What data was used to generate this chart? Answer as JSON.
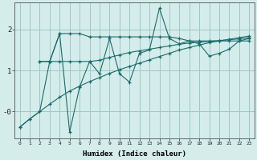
{
  "xlabel": "Humidex (Indice chaleur)",
  "background_color": "#d4ecea",
  "grid_color": "#9dc8c8",
  "line_color": "#1a6b6b",
  "xlim": [
    -0.5,
    23.5
  ],
  "ylim": [
    -0.65,
    2.65
  ],
  "yticks": [
    0.0,
    1.0,
    2.0
  ],
  "ytick_labels": [
    "-0",
    "1",
    "2"
  ],
  "xticks": [
    0,
    1,
    2,
    3,
    4,
    5,
    6,
    7,
    8,
    9,
    10,
    11,
    12,
    13,
    14,
    15,
    16,
    17,
    18,
    19,
    20,
    21,
    22,
    23
  ],
  "line1_x": [
    0,
    1,
    2,
    3,
    4,
    5,
    6,
    7,
    8,
    9,
    10,
    11,
    12,
    13,
    14,
    15,
    16,
    17,
    18,
    19,
    20,
    21,
    22,
    23
  ],
  "line1_y": [
    -0.38,
    -0.18,
    0.0,
    0.18,
    0.35,
    0.5,
    0.62,
    0.73,
    0.83,
    0.93,
    1.02,
    1.1,
    1.18,
    1.26,
    1.34,
    1.42,
    1.5,
    1.56,
    1.62,
    1.68,
    1.72,
    1.76,
    1.8,
    1.84
  ],
  "line2_x": [
    0,
    1,
    2,
    3,
    4,
    5,
    6,
    7,
    8,
    9,
    10,
    11,
    12,
    13,
    14,
    15,
    16,
    17,
    18,
    19,
    20,
    21,
    22,
    23
  ],
  "line2_y": [
    -0.38,
    -0.18,
    0.0,
    1.22,
    1.9,
    -0.5,
    0.6,
    1.22,
    0.92,
    1.78,
    0.92,
    0.72,
    1.42,
    1.5,
    2.52,
    1.78,
    1.65,
    1.72,
    1.65,
    1.35,
    1.42,
    1.52,
    1.72,
    1.78
  ],
  "line3_x": [
    2,
    3,
    4,
    5,
    6,
    7,
    8,
    9,
    10,
    11,
    12,
    13,
    14,
    15,
    16,
    17,
    18,
    19,
    20,
    21,
    22,
    23
  ],
  "line3_y": [
    1.22,
    1.22,
    1.9,
    1.9,
    1.9,
    1.82,
    1.82,
    1.82,
    1.82,
    1.82,
    1.82,
    1.82,
    1.82,
    1.82,
    1.78,
    1.72,
    1.72,
    1.72,
    1.72,
    1.72,
    1.72,
    1.72
  ],
  "line4_x": [
    2,
    3,
    4,
    5,
    6,
    7,
    8,
    9,
    10,
    11,
    12,
    13,
    14,
    15,
    16,
    17,
    18,
    19,
    20,
    21,
    22,
    23
  ],
  "line4_y": [
    1.22,
    1.22,
    1.22,
    1.22,
    1.22,
    1.22,
    1.25,
    1.32,
    1.38,
    1.44,
    1.48,
    1.52,
    1.56,
    1.6,
    1.64,
    1.67,
    1.69,
    1.71,
    1.73,
    1.75,
    1.77,
    1.8
  ]
}
